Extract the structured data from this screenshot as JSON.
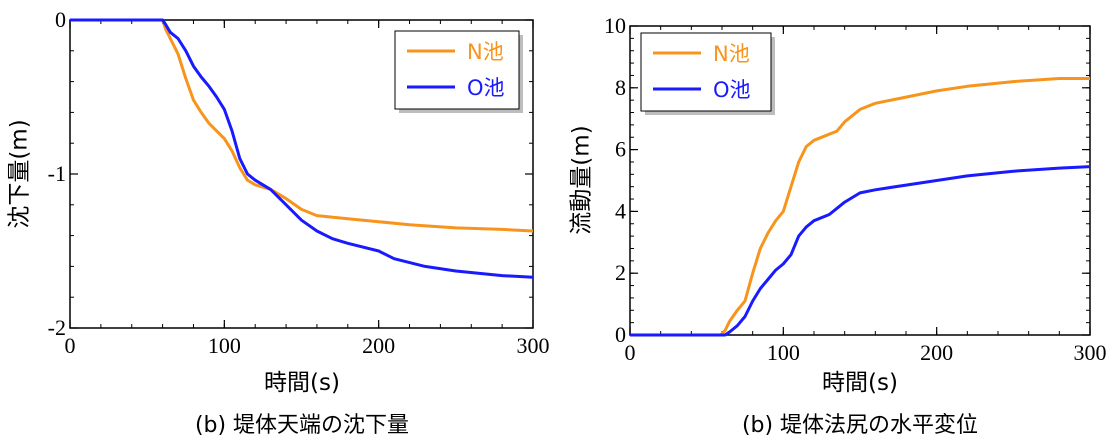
{
  "chart_data": [
    {
      "type": "line",
      "caption": "(b) 堤体天端の沈下量",
      "xlabel": "時間(s)",
      "ylabel": "沈下量(m)",
      "xlim": [
        0,
        300
      ],
      "ylim": [
        -2,
        0
      ],
      "xticks": [
        "0",
        "100",
        "200",
        "300"
      ],
      "yticks": [
        "0",
        "-1",
        "-2"
      ],
      "legend_position": "top-right",
      "series": [
        {
          "name": "N池",
          "color": "#f7941d",
          "points": [
            [
              0,
              0
            ],
            [
              60,
              0
            ],
            [
              62,
              -0.06
            ],
            [
              65,
              -0.12
            ],
            [
              70,
              -0.22
            ],
            [
              75,
              -0.38
            ],
            [
              80,
              -0.52
            ],
            [
              85,
              -0.6
            ],
            [
              90,
              -0.67
            ],
            [
              95,
              -0.72
            ],
            [
              100,
              -0.77
            ],
            [
              105,
              -0.85
            ],
            [
              110,
              -0.96
            ],
            [
              115,
              -1.04
            ],
            [
              120,
              -1.07
            ],
            [
              130,
              -1.1
            ],
            [
              140,
              -1.16
            ],
            [
              150,
              -1.23
            ],
            [
              160,
              -1.27
            ],
            [
              180,
              -1.29
            ],
            [
              200,
              -1.31
            ],
            [
              220,
              -1.33
            ],
            [
              250,
              -1.35
            ],
            [
              280,
              -1.36
            ],
            [
              300,
              -1.37
            ]
          ]
        },
        {
          "name": "O池",
          "color": "#1a1aff",
          "points": [
            [
              0,
              0
            ],
            [
              60,
              0
            ],
            [
              62,
              -0.03
            ],
            [
              65,
              -0.08
            ],
            [
              70,
              -0.12
            ],
            [
              75,
              -0.2
            ],
            [
              80,
              -0.3
            ],
            [
              85,
              -0.37
            ],
            [
              90,
              -0.43
            ],
            [
              95,
              -0.5
            ],
            [
              100,
              -0.58
            ],
            [
              105,
              -0.72
            ],
            [
              110,
              -0.9
            ],
            [
              115,
              -1.0
            ],
            [
              120,
              -1.04
            ],
            [
              130,
              -1.1
            ],
            [
              140,
              -1.2
            ],
            [
              150,
              -1.3
            ],
            [
              160,
              -1.37
            ],
            [
              170,
              -1.42
            ],
            [
              180,
              -1.45
            ],
            [
              200,
              -1.5
            ],
            [
              210,
              -1.55
            ],
            [
              230,
              -1.6
            ],
            [
              250,
              -1.63
            ],
            [
              280,
              -1.66
            ],
            [
              300,
              -1.67
            ]
          ]
        }
      ]
    },
    {
      "type": "line",
      "caption": "(b) 堤体法尻の水平変位",
      "xlabel": "時間(s)",
      "ylabel": "流動量(m)",
      "xlim": [
        0,
        300
      ],
      "ylim": [
        0,
        10
      ],
      "xticks": [
        "0",
        "100",
        "200",
        "300"
      ],
      "yticks": [
        "0",
        "2",
        "4",
        "6",
        "8",
        "10"
      ],
      "legend_position": "top-left",
      "series": [
        {
          "name": "N池",
          "color": "#f7941d",
          "points": [
            [
              0,
              0
            ],
            [
              59,
              0
            ],
            [
              62,
              0.15
            ],
            [
              65,
              0.45
            ],
            [
              70,
              0.8
            ],
            [
              75,
              1.1
            ],
            [
              80,
              2.0
            ],
            [
              85,
              2.8
            ],
            [
              90,
              3.3
            ],
            [
              95,
              3.7
            ],
            [
              100,
              4.0
            ],
            [
              105,
              4.8
            ],
            [
              110,
              5.6
            ],
            [
              115,
              6.1
            ],
            [
              120,
              6.3
            ],
            [
              130,
              6.5
            ],
            [
              135,
              6.6
            ],
            [
              140,
              6.9
            ],
            [
              150,
              7.3
            ],
            [
              160,
              7.5
            ],
            [
              180,
              7.7
            ],
            [
              200,
              7.9
            ],
            [
              220,
              8.05
            ],
            [
              250,
              8.2
            ],
            [
              280,
              8.3
            ],
            [
              300,
              8.3
            ]
          ]
        },
        {
          "name": "O池",
          "color": "#1a1aff",
          "points": [
            [
              0,
              0
            ],
            [
              62,
              0
            ],
            [
              65,
              0.1
            ],
            [
              70,
              0.3
            ],
            [
              75,
              0.6
            ],
            [
              80,
              1.1
            ],
            [
              85,
              1.5
            ],
            [
              90,
              1.8
            ],
            [
              95,
              2.1
            ],
            [
              100,
              2.3
            ],
            [
              105,
              2.6
            ],
            [
              110,
              3.2
            ],
            [
              115,
              3.5
            ],
            [
              120,
              3.7
            ],
            [
              130,
              3.9
            ],
            [
              135,
              4.1
            ],
            [
              140,
              4.3
            ],
            [
              150,
              4.6
            ],
            [
              160,
              4.7
            ],
            [
              180,
              4.85
            ],
            [
              200,
              5.0
            ],
            [
              220,
              5.15
            ],
            [
              250,
              5.3
            ],
            [
              280,
              5.4
            ],
            [
              300,
              5.45
            ]
          ]
        }
      ]
    }
  ]
}
